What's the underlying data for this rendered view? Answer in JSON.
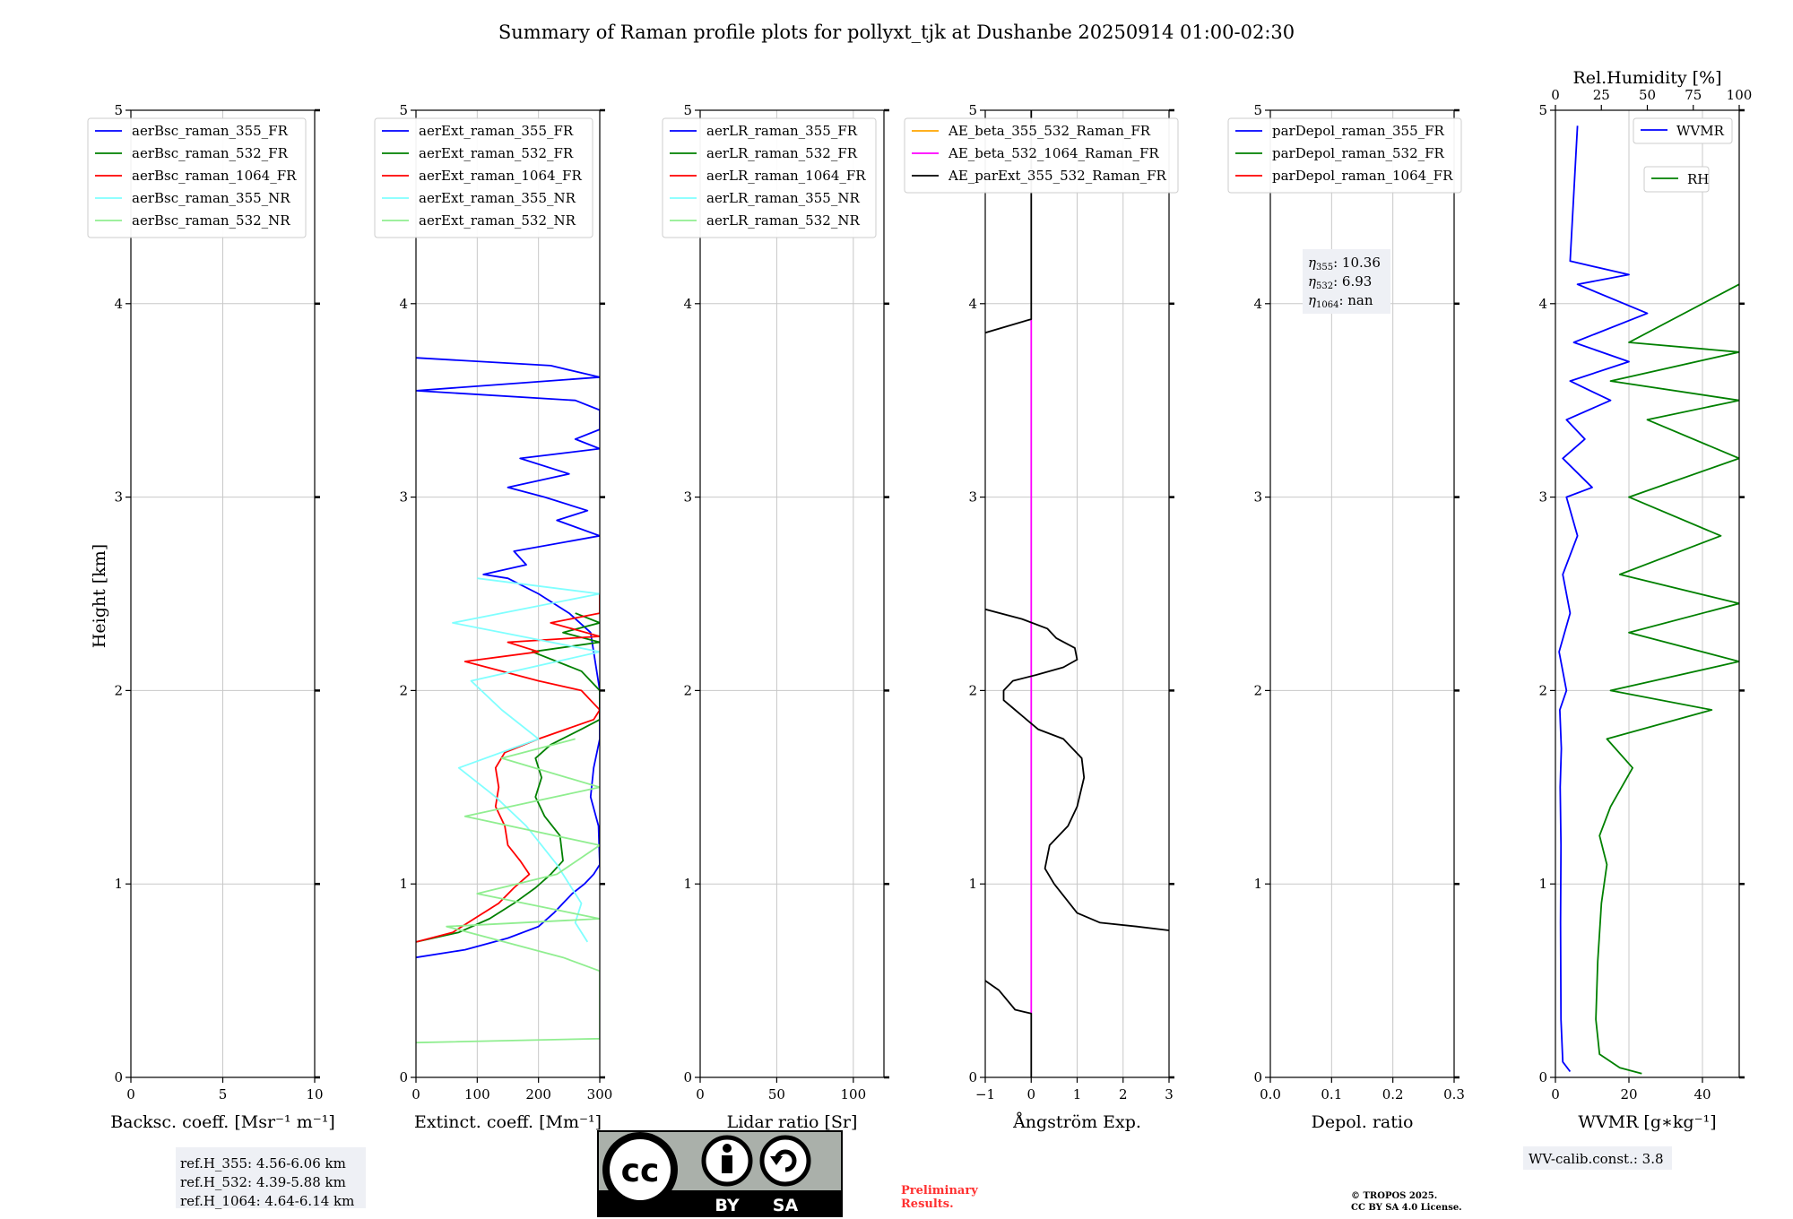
{
  "figure": {
    "title": "Summary of Raman profile plots for pollyxt_tjk at Dushanbe 20250914 01:00-02:30",
    "y_axis_label": "Height [km]",
    "y_ticks": [
      "0",
      "1",
      "2",
      "3",
      "4",
      "5"
    ],
    "ref_heights": [
      "ref.H_355: 4.56-6.06 km",
      "ref.H_532: 4.39-5.88 km",
      "ref.H_1064: 4.64-6.14 km"
    ],
    "wv_calib": "WV-calib.const.: 3.8",
    "eta_lines": [
      {
        "sub": "355",
        "value": ": 10.36"
      },
      {
        "sub": "532",
        "value": ": 6.93"
      },
      {
        "sub": "1064",
        "value": ": nan"
      }
    ],
    "eta_symbol": "η",
    "preliminary": [
      "Preliminary",
      "Results."
    ],
    "copyright": [
      "© TROPOS 2025.",
      "CC BY SA 4.0 License."
    ],
    "license_badge": {
      "left": "BY",
      "right": "SA",
      "logo": "cc"
    }
  },
  "colors": {
    "355_FR": "#0000ff",
    "532_FR": "#008000",
    "1064_FR": "#ff0000",
    "355_NR": "#80ffff",
    "532_NR": "#90ee90",
    "orange": "#ffa500",
    "magenta": "#ff00ff",
    "black": "#000000",
    "grid": "#c8c8c8"
  },
  "chart_data": [
    {
      "type": "line",
      "xlabel": "Backsc. coeff. [Msr⁻¹ m⁻¹]",
      "xlim": [
        0,
        10
      ],
      "x_ticks": [
        "0",
        "5",
        "10"
      ],
      "ylim": [
        0,
        5
      ],
      "legend_position": "top-left",
      "series": [
        {
          "name": "aerBsc_raman_355_FR",
          "color": "#0000ff",
          "points": []
        },
        {
          "name": "aerBsc_raman_532_FR",
          "color": "#008000",
          "points": []
        },
        {
          "name": "aerBsc_raman_1064_FR",
          "color": "#ff0000",
          "points": []
        },
        {
          "name": "aerBsc_raman_355_NR",
          "color": "#80ffff",
          "points": []
        },
        {
          "name": "aerBsc_raman_532_NR",
          "color": "#90ee90",
          "points": []
        }
      ]
    },
    {
      "type": "line",
      "xlabel": "Extinct. coeff. [Mm⁻¹]",
      "xlim": [
        0,
        300
      ],
      "x_ticks": [
        "0",
        "100",
        "200",
        "300"
      ],
      "ylim": [
        0,
        5
      ],
      "legend_position": "top-left",
      "series": [
        {
          "name": "aerExt_raman_355_FR",
          "color": "#0000ff",
          "points": [
            [
              0,
              0.62
            ],
            [
              80,
              0.66
            ],
            [
              150,
              0.72
            ],
            [
              200,
              0.78
            ],
            [
              225,
              0.85
            ],
            [
              240,
              0.9
            ],
            [
              255,
              0.95
            ],
            [
              275,
              1.0
            ],
            [
              290,
              1.05
            ],
            [
              300,
              1.1
            ],
            [
              298,
              1.3
            ],
            [
              285,
              1.45
            ],
            [
              290,
              1.6
            ],
            [
              300,
              1.75
            ],
            [
              300,
              1.8
            ],
            [
              300,
              2.0
            ],
            [
              295,
              2.1
            ],
            [
              285,
              2.3
            ],
            [
              250,
              2.4
            ],
            [
              200,
              2.5
            ],
            [
              150,
              2.58
            ],
            [
              110,
              2.6
            ],
            [
              180,
              2.65
            ],
            [
              160,
              2.72
            ],
            [
              300,
              2.8
            ],
            [
              230,
              2.88
            ],
            [
              280,
              2.93
            ],
            [
              210,
              3.0
            ],
            [
              150,
              3.05
            ],
            [
              250,
              3.12
            ],
            [
              170,
              3.2
            ],
            [
              300,
              3.25
            ],
            [
              260,
              3.3
            ],
            [
              300,
              3.35
            ],
            [
              300,
              3.45
            ],
            [
              260,
              3.5
            ],
            [
              0,
              3.55
            ],
            [
              300,
              3.62
            ],
            [
              220,
              3.68
            ],
            [
              0,
              3.72
            ]
          ]
        },
        {
          "name": "aerExt_raman_532_FR",
          "color": "#008000",
          "points": [
            [
              0,
              0.7
            ],
            [
              70,
              0.75
            ],
            [
              120,
              0.82
            ],
            [
              160,
              0.9
            ],
            [
              195,
              0.98
            ],
            [
              220,
              1.05
            ],
            [
              240,
              1.12
            ],
            [
              235,
              1.25
            ],
            [
              210,
              1.35
            ],
            [
              195,
              1.45
            ],
            [
              205,
              1.55
            ],
            [
              195,
              1.65
            ],
            [
              220,
              1.72
            ],
            [
              270,
              1.8
            ],
            [
              300,
              1.85
            ],
            [
              300,
              2.0
            ],
            [
              270,
              2.1
            ],
            [
              190,
              2.2
            ],
            [
              300,
              2.25
            ],
            [
              240,
              2.3
            ],
            [
              300,
              2.35
            ],
            [
              260,
              2.4
            ]
          ]
        },
        {
          "name": "aerExt_raman_1064_FR",
          "color": "#ff0000",
          "points": [
            [
              0,
              0.7
            ],
            [
              60,
              0.75
            ],
            [
              100,
              0.83
            ],
            [
              135,
              0.9
            ],
            [
              160,
              0.98
            ],
            [
              185,
              1.05
            ],
            [
              170,
              1.12
            ],
            [
              150,
              1.2
            ],
            [
              145,
              1.3
            ],
            [
              130,
              1.4
            ],
            [
              135,
              1.5
            ],
            [
              130,
              1.6
            ],
            [
              145,
              1.68
            ],
            [
              200,
              1.75
            ],
            [
              290,
              1.85
            ],
            [
              300,
              1.9
            ],
            [
              270,
              2.0
            ],
            [
              200,
              2.05
            ],
            [
              80,
              2.15
            ],
            [
              200,
              2.2
            ],
            [
              150,
              2.25
            ],
            [
              300,
              2.28
            ],
            [
              220,
              2.35
            ],
            [
              300,
              2.4
            ],
            [
              300,
              2.5
            ]
          ]
        },
        {
          "name": "aerExt_raman_355_NR",
          "color": "#80ffff",
          "points": [
            [
              280,
              0.7
            ],
            [
              260,
              0.8
            ],
            [
              270,
              0.9
            ],
            [
              230,
              1.1
            ],
            [
              180,
              1.3
            ],
            [
              130,
              1.45
            ],
            [
              70,
              1.6
            ],
            [
              200,
              1.75
            ],
            [
              140,
              1.9
            ],
            [
              90,
              2.05
            ],
            [
              300,
              2.2
            ],
            [
              60,
              2.35
            ],
            [
              300,
              2.5
            ],
            [
              100,
              2.58
            ]
          ]
        },
        {
          "name": "aerExt_raman_532_NR",
          "color": "#90ee90",
          "points": [
            [
              0,
              0.18
            ],
            [
              300,
              0.2
            ],
            [
              300,
              0.55
            ],
            [
              240,
              0.62
            ],
            [
              50,
              0.78
            ],
            [
              300,
              0.82
            ],
            [
              100,
              0.95
            ],
            [
              230,
              1.05
            ],
            [
              300,
              1.2
            ],
            [
              80,
              1.35
            ],
            [
              300,
              1.5
            ],
            [
              140,
              1.65
            ],
            [
              260,
              1.75
            ]
          ]
        }
      ]
    },
    {
      "type": "line",
      "xlabel": "Lidar ratio [Sr]",
      "xlim": [
        0,
        120
      ],
      "x_ticks": [
        "0",
        "50",
        "100"
      ],
      "ylim": [
        0,
        5
      ],
      "legend_position": "top-left",
      "series": [
        {
          "name": "aerLR_raman_355_FR",
          "color": "#0000ff",
          "points": []
        },
        {
          "name": "aerLR_raman_532_FR",
          "color": "#008000",
          "points": []
        },
        {
          "name": "aerLR_raman_1064_FR",
          "color": "#ff0000",
          "points": []
        },
        {
          "name": "aerLR_raman_355_NR",
          "color": "#80ffff",
          "points": []
        },
        {
          "name": "aerLR_raman_532_NR",
          "color": "#90ee90",
          "points": []
        }
      ]
    },
    {
      "type": "line",
      "xlabel": "Ångström Exp.",
      "xlim": [
        -1,
        3
      ],
      "x_ticks": [
        "−1",
        "0",
        "1",
        "2",
        "3"
      ],
      "ylim": [
        0,
        5
      ],
      "legend_position": "top-left",
      "series": [
        {
          "name": "AE_beta_355_532_Raman_FR",
          "color": "#ffa500",
          "points": []
        },
        {
          "name": "AE_beta_532_1064_Raman_FR",
          "color": "#ff00ff",
          "points": [
            [
              0,
              0.33
            ],
            [
              0,
              3.92
            ]
          ]
        },
        {
          "name": "AE_parExt_355_532_Raman_FR",
          "color": "#000000",
          "segments": [
            [
              [
                0,
                0
              ],
              [
                0,
                0.33
              ],
              [
                -0.35,
                0.35
              ],
              [
                -0.7,
                0.45
              ],
              [
                -1,
                0.5
              ]
            ],
            [
              [
                3,
                0.76
              ],
              [
                2.3,
                0.78
              ],
              [
                1.5,
                0.8
              ],
              [
                1,
                0.85
              ],
              [
                0.5,
                1.0
              ],
              [
                0.3,
                1.08
              ],
              [
                0.4,
                1.2
              ],
              [
                0.8,
                1.3
              ],
              [
                1,
                1.4
              ],
              [
                1.15,
                1.55
              ],
              [
                1.1,
                1.65
              ],
              [
                0.7,
                1.75
              ],
              [
                0.15,
                1.8
              ],
              [
                -0.35,
                1.9
              ],
              [
                -0.6,
                1.95
              ],
              [
                -0.6,
                2.0
              ],
              [
                -0.4,
                2.05
              ],
              [
                0.1,
                2.08
              ],
              [
                0.7,
                2.12
              ],
              [
                1,
                2.16
              ],
              [
                0.95,
                2.22
              ],
              [
                0.55,
                2.27
              ],
              [
                0.35,
                2.32
              ],
              [
                -0.2,
                2.37
              ],
              [
                -1,
                2.42
              ]
            ],
            [
              [
                -1,
                3.85
              ],
              [
                0,
                3.92
              ],
              [
                0,
                5
              ]
            ]
          ]
        }
      ]
    },
    {
      "type": "line",
      "xlabel": "Depol. ratio",
      "xlim": [
        0,
        0.3
      ],
      "x_ticks": [
        "0.0",
        "0.1",
        "0.2",
        "0.3"
      ],
      "ylim": [
        0,
        5
      ],
      "legend_position": "top-left",
      "series": [
        {
          "name": "parDepol_raman_355_FR",
          "color": "#0000ff",
          "points": []
        },
        {
          "name": "parDepol_raman_532_FR",
          "color": "#008000",
          "points": []
        },
        {
          "name": "parDepol_raman_1064_FR",
          "color": "#ff0000",
          "points": []
        }
      ]
    },
    {
      "type": "line",
      "xlabel": "WVMR [g∗kg⁻¹]",
      "xlim": [
        0,
        50
      ],
      "x_ticks": [
        "0",
        "20",
        "40"
      ],
      "top_xlabel": "Rel.Humidity [%]",
      "top_xlim": [
        0,
        100
      ],
      "top_x_ticks": [
        "0",
        "25",
        "50",
        "75",
        "100"
      ],
      "ylim": [
        0,
        5
      ],
      "legend_position": "top-right",
      "series": [
        {
          "name": "WVMR",
          "color": "#0000ff",
          "points": [
            [
              4,
              0.03
            ],
            [
              2,
              0.08
            ],
            [
              1.5,
              0.3
            ],
            [
              1.4,
              0.8
            ],
            [
              1.5,
              1.2
            ],
            [
              1.3,
              1.5
            ],
            [
              1.6,
              1.7
            ],
            [
              1.2,
              1.9
            ],
            [
              3,
              2.0
            ],
            [
              1,
              2.2
            ],
            [
              4,
              2.4
            ],
            [
              2,
              2.6
            ],
            [
              6,
              2.8
            ],
            [
              3,
              3.0
            ],
            [
              10,
              3.05
            ],
            [
              2,
              3.2
            ],
            [
              8,
              3.3
            ],
            [
              3,
              3.4
            ],
            [
              15,
              3.5
            ],
            [
              4,
              3.6
            ],
            [
              20,
              3.7
            ],
            [
              5,
              3.8
            ],
            [
              25,
              3.95
            ],
            [
              6,
              4.1
            ],
            [
              20,
              4.15
            ],
            [
              4,
              4.22
            ],
            [
              6,
              4.92
            ]
          ]
        },
        {
          "name": "RH",
          "color": "#008000",
          "top_axis": true,
          "points": [
            [
              47,
              0.02
            ],
            [
              35,
              0.05
            ],
            [
              24,
              0.12
            ],
            [
              22,
              0.3
            ],
            [
              23,
              0.6
            ],
            [
              25,
              0.9
            ],
            [
              28,
              1.1
            ],
            [
              24,
              1.25
            ],
            [
              30,
              1.4
            ],
            [
              42,
              1.6
            ],
            [
              28,
              1.75
            ],
            [
              85,
              1.9
            ],
            [
              30,
              2.0
            ],
            [
              100,
              2.15
            ],
            [
              40,
              2.3
            ],
            [
              100,
              2.45
            ],
            [
              35,
              2.6
            ],
            [
              90,
              2.8
            ],
            [
              40,
              3.0
            ],
            [
              100,
              3.2
            ],
            [
              50,
              3.4
            ],
            [
              100,
              3.5
            ],
            [
              30,
              3.6
            ],
            [
              100,
              3.75
            ],
            [
              40,
              3.8
            ],
            [
              100,
              4.1
            ]
          ]
        }
      ]
    }
  ]
}
